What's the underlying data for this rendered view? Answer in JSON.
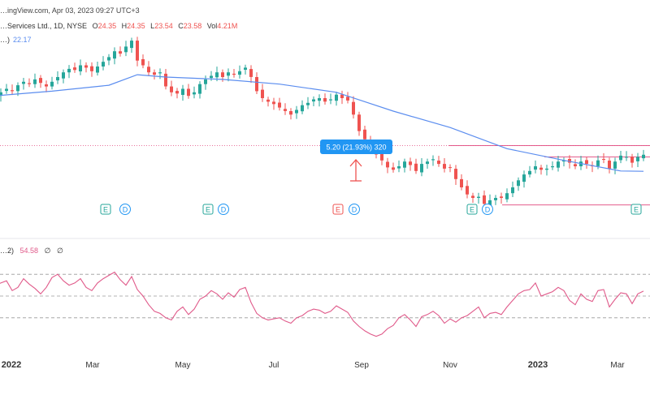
{
  "header": {
    "source": "…ingView.com, Apr 03, 2023 09:27 UTC+3",
    "symbol": "…Services Ltd., 1D, NYSE",
    "open_label": "O",
    "open": "24.35",
    "high_label": "H",
    "high": "24.35",
    "low_label": "L",
    "low": "23.54",
    "close_label": "C",
    "close": "23.58",
    "vol_label": "Vol",
    "vol": "4.21M",
    "ma_label": "…)",
    "ma_value": "22.17"
  },
  "indicator": {
    "label": "…2)",
    "value": "54.58",
    "extra1": "∅",
    "extra2": "∅"
  },
  "measure": {
    "label": "5.20 (21.93%) 320"
  },
  "event_markers": [
    "E",
    "D",
    "E",
    "D",
    "E",
    "D",
    "E",
    "D",
    "E"
  ],
  "colors": {
    "up": "#26a69a",
    "down": "#ef5350",
    "ma": "#5b8def",
    "osc": "#e05a8a",
    "hline": "#e0457b",
    "badge": "#2196f3"
  },
  "chart_data": {
    "type": "candlestick",
    "x_ticks": [
      "2022",
      "Mar",
      "May",
      "Jul",
      "Sep",
      "Nov",
      "2023",
      "Mar"
    ],
    "y_range": [
      17,
      34
    ],
    "price_close": [
      28.6,
      28.9,
      29.2,
      29.0,
      29.5,
      29.8,
      29.6,
      30.0,
      29.7,
      29.4,
      29.8,
      30.2,
      30.6,
      30.9,
      30.8,
      31.2,
      31.0,
      30.7,
      31.1,
      31.5,
      31.9,
      32.4,
      32.2,
      32.8,
      33.3,
      31.6,
      31.2,
      30.6,
      30.4,
      30.6,
      29.4,
      28.9,
      28.8,
      29.2,
      28.6,
      28.9,
      29.6,
      30.0,
      30.3,
      30.6,
      30.2,
      30.6,
      30.4,
      30.7,
      31.0,
      30.2,
      29.0,
      28.4,
      28.1,
      27.9,
      27.6,
      27.3,
      27.0,
      27.4,
      27.8,
      28.0,
      28.3,
      28.4,
      28.1,
      28.3,
      28.7,
      28.4,
      28.2,
      27.0,
      25.6,
      24.9,
      24.1,
      23.6,
      23.1,
      22.5,
      22.3,
      22.6,
      23.0,
      22.7,
      22.2,
      22.8,
      23.0,
      23.2,
      22.8,
      22.4,
      22.5,
      21.5,
      20.8,
      20.2,
      19.9,
      20.0,
      19.4,
      19.7,
      19.9,
      19.9,
      20.3,
      20.8,
      21.4,
      21.9,
      22.2,
      22.6,
      22.3,
      22.4,
      22.6,
      23.0,
      23.1,
      22.9,
      22.6,
      23.0,
      22.8,
      22.6,
      23.1,
      23.2,
      22.4,
      23.0,
      23.5,
      23.4,
      22.9,
      23.4,
      23.58
    ],
    "moving_average": {
      "name": "",
      "values": [
        [
          0,
          28.6
        ],
        [
          10,
          29.0
        ],
        [
          20,
          29.5
        ],
        [
          25,
          30.4
        ],
        [
          30,
          30.2
        ],
        [
          40,
          30.0
        ],
        [
          50,
          29.6
        ],
        [
          60,
          28.9
        ],
        [
          70,
          27.3
        ],
        [
          80,
          25.9
        ],
        [
          90,
          24.1
        ],
        [
          100,
          23.1
        ],
        [
          110,
          22.2
        ],
        [
          114,
          22.17
        ]
      ]
    },
    "horizontal_levels": [
      24.35,
      23.4,
      19.3
    ],
    "oscillator": {
      "ylim": [
        0,
        100
      ],
      "levels": [
        70,
        50,
        30
      ],
      "last": 54.58,
      "values": [
        60,
        62,
        64,
        55,
        58,
        66,
        61,
        57,
        52,
        58,
        67,
        70,
        64,
        60,
        62,
        66,
        58,
        55,
        62,
        66,
        69,
        72,
        65,
        60,
        68,
        56,
        50,
        42,
        36,
        34,
        30,
        28,
        36,
        40,
        33,
        38,
        47,
        50,
        55,
        52,
        47,
        53,
        49,
        56,
        58,
        44,
        34,
        30,
        28,
        29,
        30,
        27,
        25,
        30,
        32,
        36,
        38,
        37,
        34,
        36,
        41,
        38,
        35,
        27,
        22,
        18,
        15,
        13,
        15,
        20,
        23,
        30,
        33,
        28,
        22,
        31,
        33,
        36,
        32,
        25,
        29,
        26,
        30,
        32,
        36,
        40,
        30,
        34,
        35,
        33,
        40,
        46,
        52,
        55,
        56,
        62,
        50,
        52,
        54,
        58,
        55,
        46,
        42,
        52,
        47,
        45,
        55,
        56,
        40,
        47,
        53,
        52,
        43,
        52,
        54.58
      ]
    }
  }
}
